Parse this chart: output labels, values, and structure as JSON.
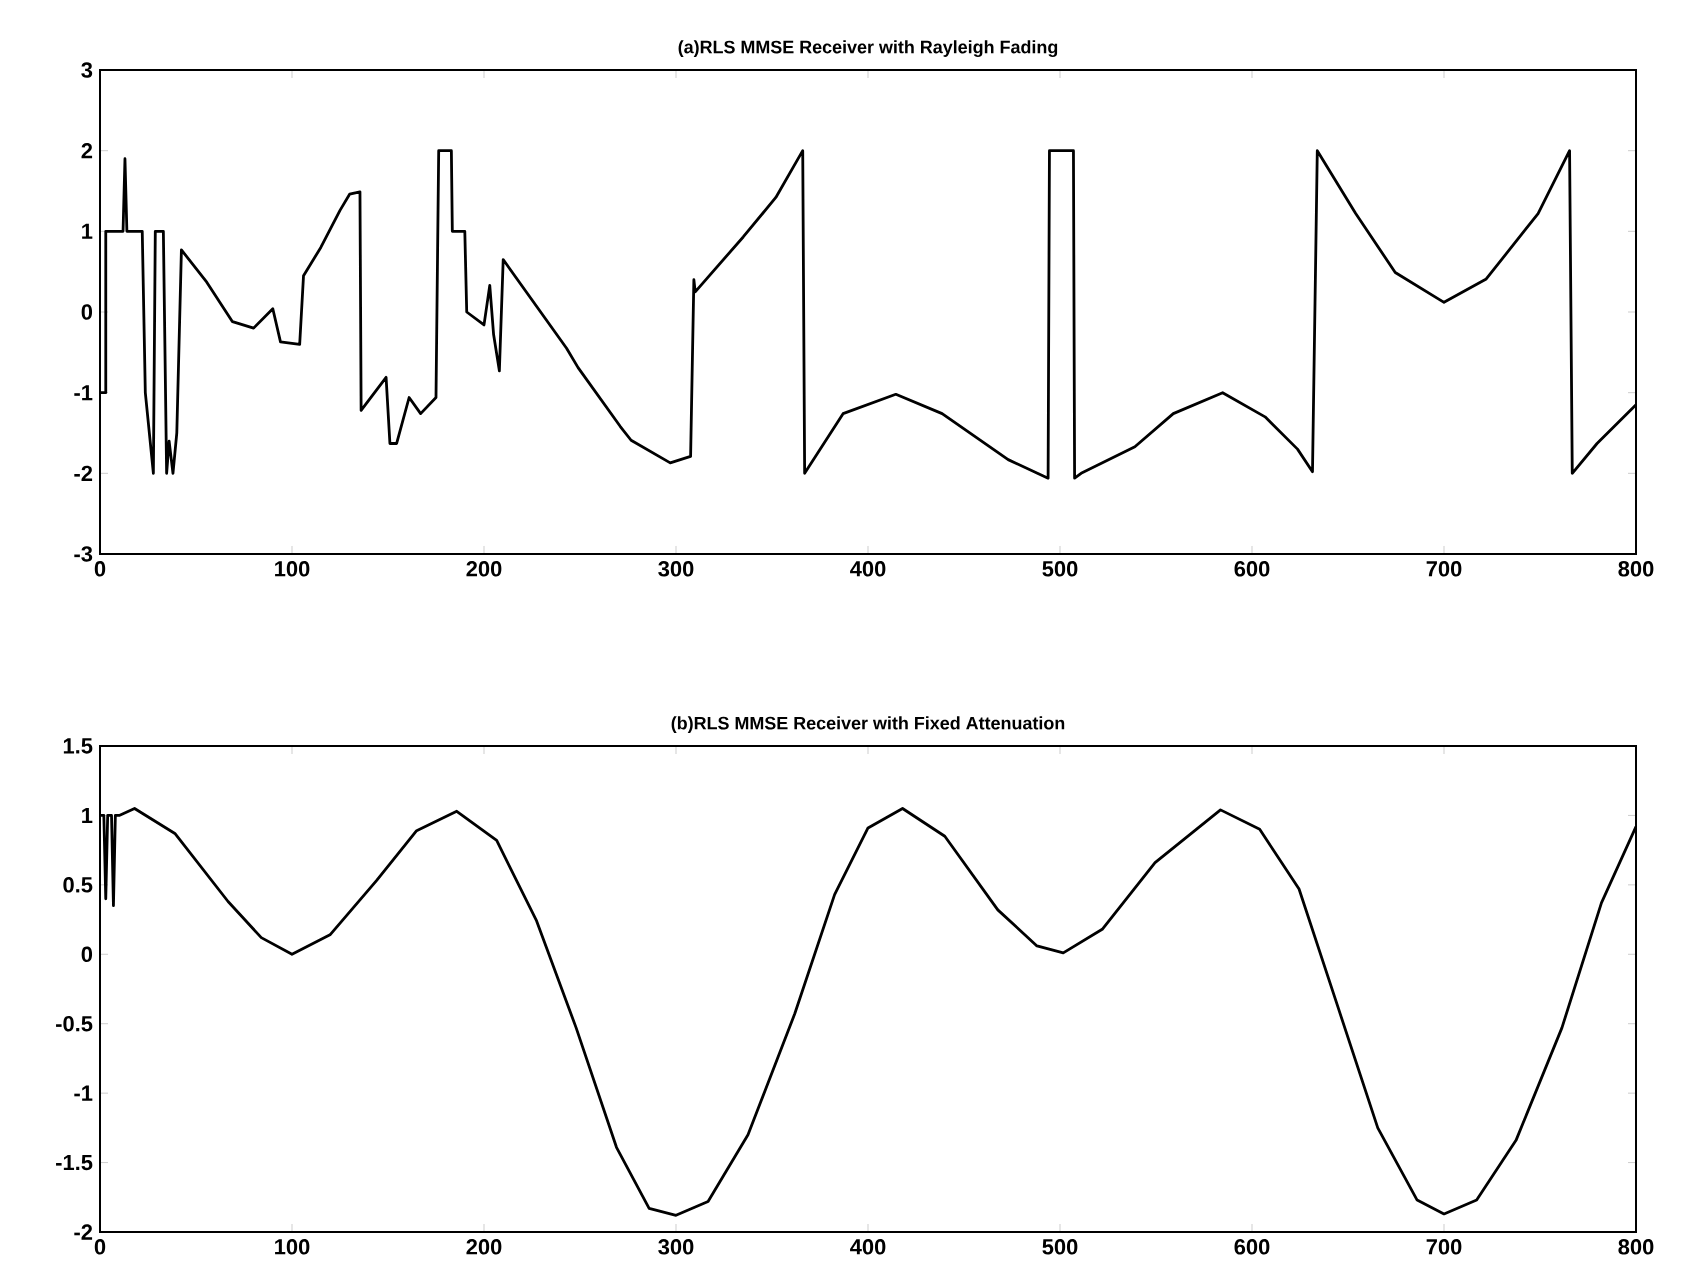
{
  "chart_data": [
    {
      "type": "line",
      "title": "(a)RLS MMSE Receiver with Rayleigh Fading",
      "xlim": [
        0,
        800
      ],
      "xticks": [
        0,
        100,
        200,
        300,
        400,
        500,
        600,
        700,
        800
      ],
      "ylim": [
        -3,
        3
      ],
      "yticks": [
        -3,
        -2,
        -1,
        0,
        1,
        2,
        3
      ],
      "grid": false,
      "marker": "none",
      "line_style": "solid",
      "series": [
        {
          "color": "#000000",
          "x": [
            0,
            3,
            3,
            12,
            13,
            14,
            22,
            23.6,
            27.8,
            28.8,
            33,
            34.7,
            36,
            38,
            40,
            42.4,
            55.6,
            69,
            80,
            90,
            94,
            104,
            106,
            115,
            125,
            130,
            135.4,
            136,
            149,
            151,
            154.5,
            161,
            167,
            175,
            176.4,
            183,
            183.5,
            190,
            191,
            200,
            203,
            205,
            208,
            210,
            243,
            249,
            271,
            276.6,
            297,
            307.6,
            309.3,
            310,
            335,
            352,
            366,
            367,
            387,
            414.5,
            438.6,
            473,
            493.8,
            494.5,
            507,
            507.6,
            511,
            539,
            559,
            584.7,
            606.8,
            623.7,
            631.5,
            634,
            654,
            674.6,
            700,
            722,
            749,
            765.4,
            766.8,
            779.7,
            800
          ],
          "values": [
            -1,
            -1,
            1,
            1,
            1.9,
            1,
            1,
            -1,
            -2,
            1,
            1,
            -2,
            -1.6,
            -2,
            -1.5,
            0.77,
            0.37,
            -0.12,
            -0.2,
            0.04,
            -0.37,
            -0.4,
            0.45,
            0.8,
            1.26,
            1.46,
            1.49,
            -1.22,
            -0.81,
            -1.63,
            -1.63,
            -1.06,
            -1.26,
            -1.06,
            2,
            2,
            1,
            1,
            0,
            -0.16,
            0.33,
            -0.28,
            -0.73,
            0.65,
            -0.45,
            -0.69,
            -1.42,
            -1.59,
            -1.87,
            -1.79,
            0.4,
            0.25,
            0.93,
            1.42,
            2,
            -2,
            -1.26,
            -1.02,
            -1.26,
            -1.83,
            -2.06,
            2,
            2,
            -2.06,
            -2,
            -1.67,
            -1.26,
            -1.0,
            -1.3,
            -1.7,
            -1.98,
            2,
            1.22,
            0.49,
            0.12,
            0.41,
            1.22,
            2,
            -2,
            -1.63,
            -1.15
          ]
        }
      ]
    },
    {
      "type": "line",
      "title": "(b)RLS MMSE Receiver with Fixed Attenuation",
      "xlim": [
        0,
        800
      ],
      "xticks": [
        0,
        100,
        200,
        300,
        400,
        500,
        600,
        700,
        800
      ],
      "ylim": [
        -2,
        1.5
      ],
      "yticks": [
        -2,
        -1.5,
        -1,
        -0.5,
        0,
        0.5,
        1,
        1.5
      ],
      "grid": false,
      "marker": "none",
      "line_style": "solid",
      "series": [
        {
          "color": "#000000",
          "x": [
            0,
            2,
            3,
            4,
            6,
            7,
            8,
            10,
            18,
            39,
            66.7,
            84,
            100,
            119.8,
            144,
            164.9,
            185.8,
            206.6,
            227.4,
            248,
            269,
            286,
            300,
            316.7,
            337.5,
            361.8,
            382.6,
            400,
            418,
            440,
            467.6,
            488,
            501.7,
            522,
            549.5,
            583.6,
            604,
            624.5,
            645,
            665.5,
            686,
            700,
            717,
            737.5,
            761.4,
            782,
            800
          ],
          "values": [
            1,
            1,
            0.4,
            1,
            1,
            0.35,
            1,
            1,
            1.05,
            0.87,
            0.38,
            0.12,
            0,
            0.14,
            0.53,
            0.89,
            1.03,
            0.82,
            0.24,
            -0.53,
            -1.39,
            -1.83,
            -1.88,
            -1.78,
            -1.3,
            -0.43,
            0.43,
            0.91,
            1.05,
            0.85,
            0.32,
            0.06,
            0.01,
            0.18,
            0.66,
            1.04,
            0.9,
            0.47,
            -0.39,
            -1.25,
            -1.77,
            -1.87,
            -1.77,
            -1.34,
            -0.53,
            0.37,
            0.92
          ]
        }
      ]
    }
  ]
}
